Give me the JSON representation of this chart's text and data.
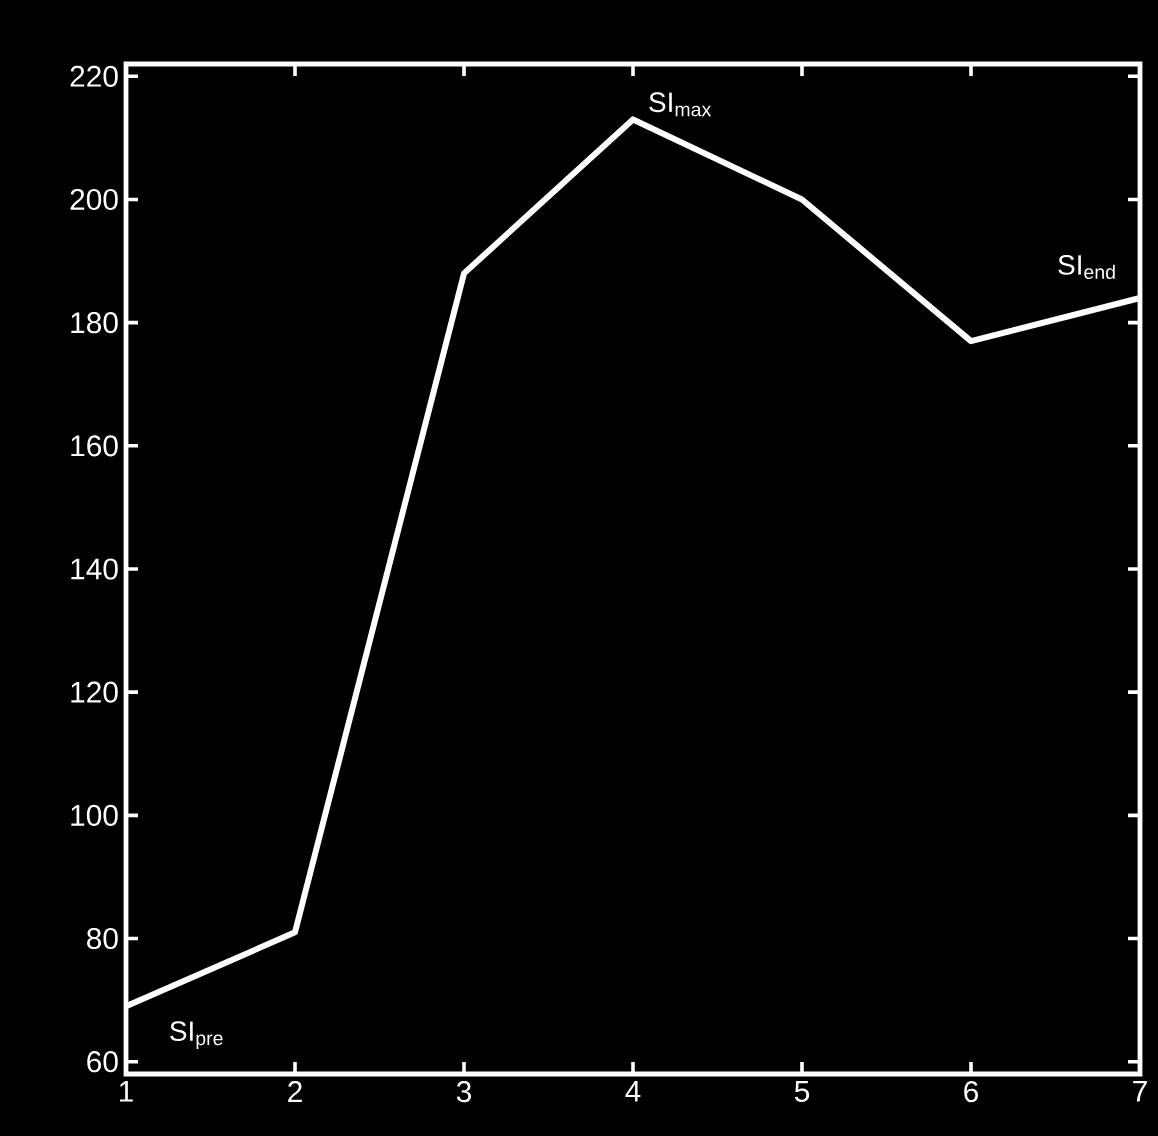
{
  "chart_data": {
    "type": "line",
    "x": [
      1,
      2,
      3,
      4,
      5,
      6,
      7
    ],
    "series": [
      {
        "color": "#ffffff",
        "values": [
          69,
          81,
          188,
          213,
          200,
          177,
          184
        ]
      }
    ],
    "xlim": [
      1,
      7
    ],
    "xticks": [
      1,
      2,
      3,
      4,
      5,
      6,
      7
    ],
    "ylim": [
      58,
      222
    ],
    "yticks": [
      60,
      80,
      100,
      120,
      140,
      160,
      180,
      200,
      220
    ],
    "marker": "none",
    "line_style": "solid",
    "annotations": [
      {
        "text": "SI$_{pre}$",
        "x": 1,
        "y": 69
      },
      {
        "text": "SI$_{max}$",
        "x": 4,
        "y": 213
      },
      {
        "text": "SI$_{end}$",
        "x": 7,
        "y": 184
      }
    ]
  }
}
